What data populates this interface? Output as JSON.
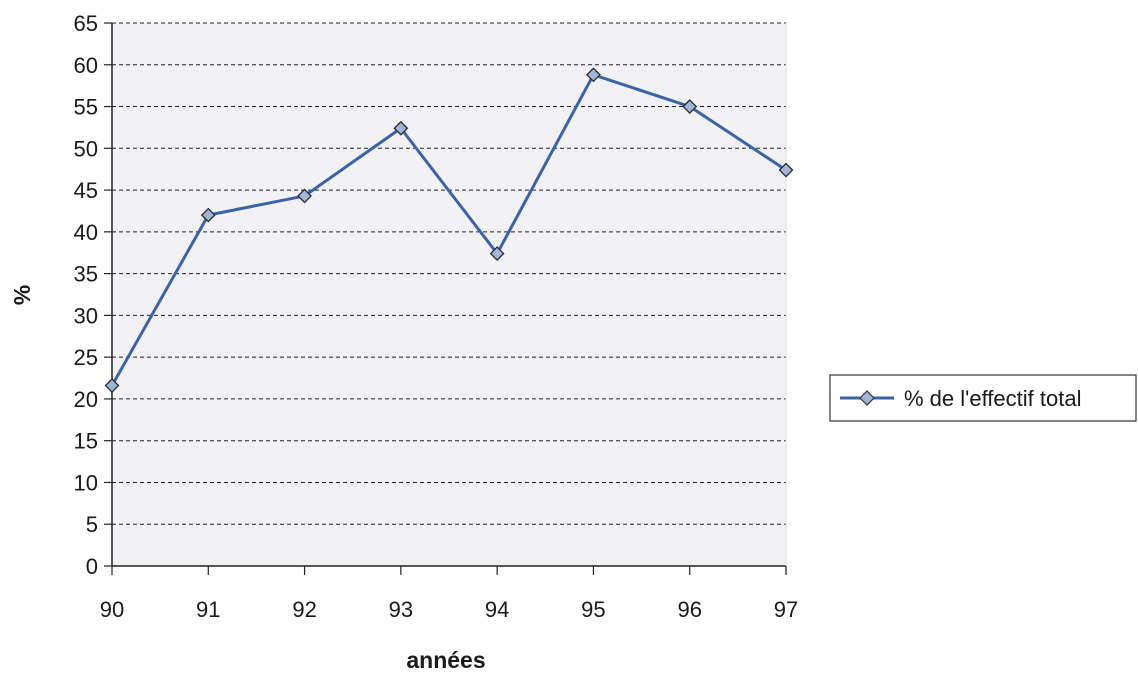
{
  "chart_data": {
    "type": "line",
    "title": "",
    "xlabel": "années",
    "ylabel": "%",
    "categories": [
      "90",
      "91",
      "92",
      "93",
      "94",
      "95",
      "96",
      "97"
    ],
    "series": [
      {
        "name": "% de l'effectif total",
        "values": [
          21.6,
          42.0,
          44.3,
          52.4,
          37.4,
          58.8,
          55.0,
          47.4
        ],
        "color": "#3b63a8",
        "marker": "diamond",
        "marker_fill": "#9fb6d8"
      }
    ],
    "ylim": [
      0,
      65
    ],
    "yticks": [
      "0",
      "5",
      "10",
      "15",
      "20",
      "25",
      "30",
      "35",
      "40",
      "45",
      "50",
      "55",
      "60",
      "65"
    ],
    "grid": "horizontal-dashed",
    "plot_background": "#f2f2f5",
    "legend": "right"
  }
}
